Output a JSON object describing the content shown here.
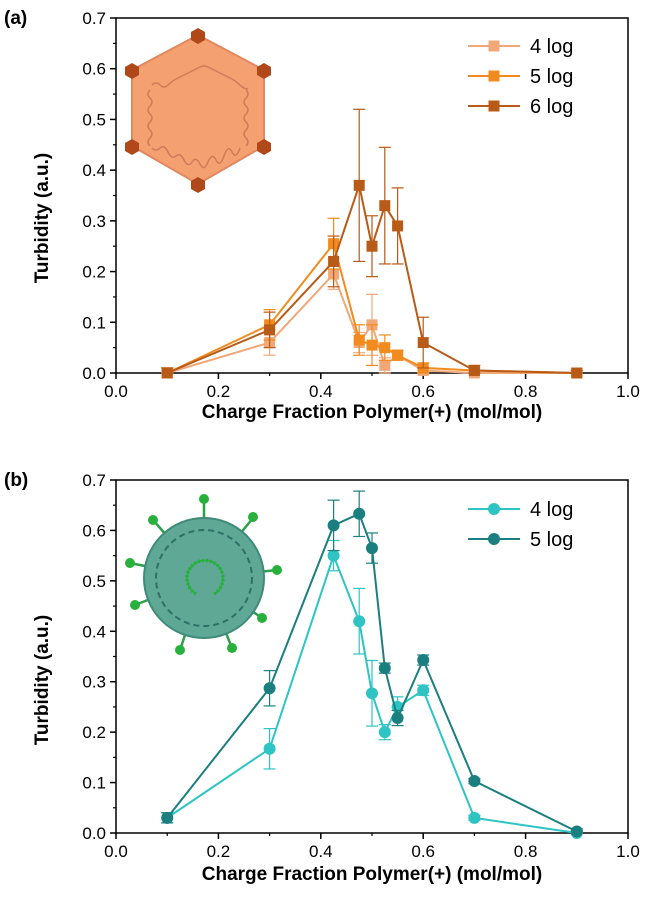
{
  "chart_data": [
    {
      "type": "line",
      "panel_label": "(a)",
      "xlabel": "Charge Fraction Polymer(+) (mol/mol)",
      "ylabel": "Turbidity (a.u.)",
      "xlim": [
        0,
        1.0
      ],
      "ylim": [
        0,
        0.7
      ],
      "xticks": [
        "0.0",
        "0.2",
        "0.4",
        "0.6",
        "0.8",
        "1.0"
      ],
      "yticks": [
        "0.0",
        "0.1",
        "0.2",
        "0.3",
        "0.4",
        "0.5",
        "0.6",
        "0.7"
      ],
      "marker": "square",
      "legend_position": "top-right",
      "icon": "non-enveloped-virus-icon",
      "icon_color": "#f5a070",
      "series": [
        {
          "name": "4 log",
          "color": "#f0a878",
          "x": [
            0.1,
            0.3,
            0.425,
            0.475,
            0.5,
            0.525,
            0.55,
            0.6,
            0.7,
            0.9
          ],
          "y": [
            0.0,
            0.06,
            0.195,
            0.06,
            0.095,
            0.015,
            0.035,
            0.005,
            0.0,
            0.0
          ],
          "err": [
            0.01,
            0.025,
            0.03,
            0.02,
            0.06,
            0.015,
            0.01,
            0.005,
            0.005,
            0.005
          ]
        },
        {
          "name": "5 log",
          "color": "#f28b1e",
          "x": [
            0.1,
            0.3,
            0.425,
            0.475,
            0.5,
            0.525,
            0.55,
            0.6,
            0.7,
            0.9
          ],
          "y": [
            0.0,
            0.095,
            0.255,
            0.065,
            0.055,
            0.05,
            0.035,
            0.01,
            0.005,
            0.0
          ],
          "err": [
            0.01,
            0.03,
            0.05,
            0.03,
            0.04,
            0.025,
            0.01,
            0.01,
            0.005,
            0.005
          ]
        },
        {
          "name": "6 log",
          "color": "#b85a18",
          "x": [
            0.1,
            0.3,
            0.425,
            0.475,
            0.5,
            0.525,
            0.55,
            0.6,
            0.7,
            0.9
          ],
          "y": [
            0.0,
            0.085,
            0.22,
            0.37,
            0.25,
            0.33,
            0.29,
            0.06,
            0.005,
            0.0
          ],
          "err": [
            0.01,
            0.035,
            0.05,
            0.15,
            0.06,
            0.115,
            0.075,
            0.05,
            0.01,
            0.005
          ]
        }
      ]
    },
    {
      "type": "line",
      "panel_label": "(b)",
      "xlabel": "Charge Fraction Polymer(+) (mol/mol)",
      "ylabel": "Turbidity (a.u.)",
      "xlim": [
        0,
        1.0
      ],
      "ylim": [
        0,
        0.7
      ],
      "xticks": [
        "0.0",
        "0.2",
        "0.4",
        "0.6",
        "0.8",
        "1.0"
      ],
      "yticks": [
        "0.0",
        "0.1",
        "0.2",
        "0.3",
        "0.4",
        "0.5",
        "0.6",
        "0.7"
      ],
      "marker": "circle",
      "legend_position": "top-right",
      "icon": "enveloped-virus-icon",
      "icon_color": "#5fa896",
      "series": [
        {
          "name": "4 log",
          "color": "#2ec4c4",
          "x": [
            0.1,
            0.3,
            0.425,
            0.475,
            0.5,
            0.525,
            0.55,
            0.6,
            0.7,
            0.9
          ],
          "y": [
            0.03,
            0.167,
            0.55,
            0.42,
            0.277,
            0.2,
            0.25,
            0.283,
            0.03,
            0.0
          ],
          "err": [
            0.01,
            0.04,
            0.03,
            0.065,
            0.065,
            0.015,
            0.02,
            0.01,
            0.005,
            0.005
          ]
        },
        {
          "name": "5 log",
          "color": "#1b7f7f",
          "x": [
            0.1,
            0.3,
            0.425,
            0.475,
            0.5,
            0.525,
            0.55,
            0.6,
            0.7,
            0.9
          ],
          "y": [
            0.03,
            0.287,
            0.61,
            0.633,
            0.565,
            0.327,
            0.228,
            0.343,
            0.103,
            0.003
          ],
          "err": [
            0.01,
            0.035,
            0.05,
            0.045,
            0.03,
            0.01,
            0.015,
            0.01,
            0.005,
            0.005
          ]
        }
      ]
    }
  ]
}
